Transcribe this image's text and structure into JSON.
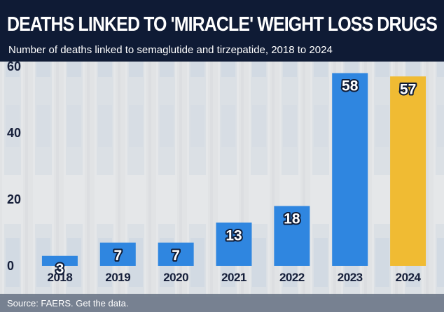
{
  "header": {
    "title": "DEATHS LINKED TO 'MIRACLE' WEIGHT LOSS DRUGS",
    "subtitle": "Number of deaths linked to semaglutide and tirzepatide, 2018 to 2024"
  },
  "footer": {
    "source": "Source: FAERS. Get the data."
  },
  "colors": {
    "header_bg": "#0f1b35",
    "bar_default": "#2f86e0",
    "bar_highlight": "#f0bb33",
    "label_outline": "#0f1b35",
    "axis_text": "#161f3a"
  },
  "chart_data": {
    "type": "bar",
    "categories": [
      "2018",
      "2019",
      "2020",
      "2021",
      "2022",
      "2023",
      "2024"
    ],
    "values": [
      3,
      7,
      7,
      13,
      18,
      58,
      57
    ],
    "highlight": [
      "2024"
    ],
    "ylim": [
      0,
      60
    ],
    "yticks": [
      0,
      20,
      40,
      60
    ],
    "xlabel": "",
    "ylabel": "",
    "grid": false,
    "legend": "none"
  }
}
